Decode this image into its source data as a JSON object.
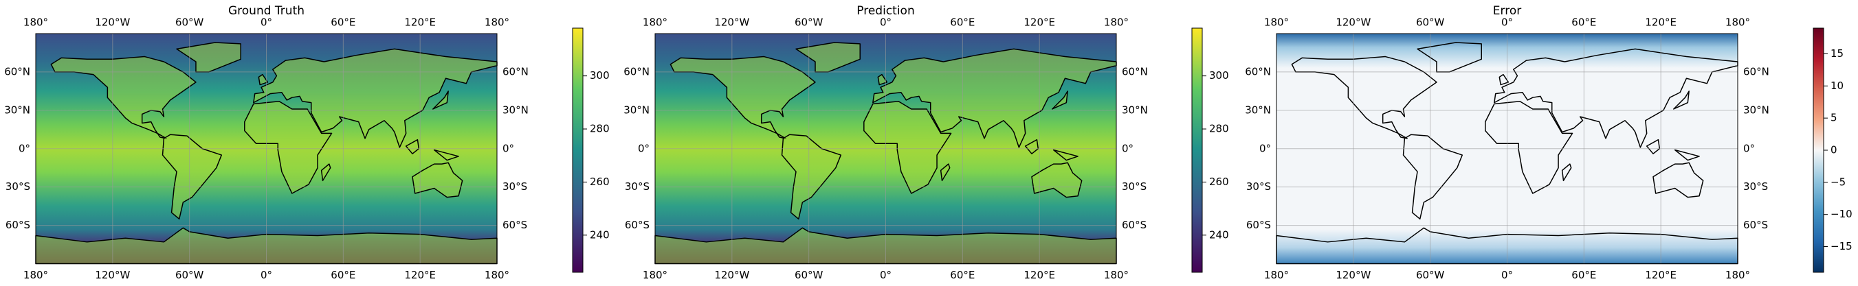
{
  "chart_data": [
    {
      "type": "map",
      "title": "Ground Truth",
      "cmap": "viridis",
      "xlim": [
        -180,
        180
      ],
      "ylim": [
        -90,
        90
      ],
      "xticks": [
        {
          "value": -180,
          "label": "180°"
        },
        {
          "value": -120,
          "label": "120°W"
        },
        {
          "value": -60,
          "label": "60°W"
        },
        {
          "value": 0,
          "label": "0°"
        },
        {
          "value": 60,
          "label": "60°E"
        },
        {
          "value": 120,
          "label": "120°E"
        },
        {
          "value": 180,
          "label": "180°"
        }
      ],
      "yticks": [
        {
          "value": 60,
          "label": "60°N"
        },
        {
          "value": 30,
          "label": "30°N"
        },
        {
          "value": 0,
          "label": "0°"
        },
        {
          "value": -30,
          "label": "30°S"
        },
        {
          "value": -60,
          "label": "60°S"
        }
      ],
      "grid": true,
      "colorbar": {
        "lim": [
          226,
          318
        ],
        "ticks": [
          240,
          260,
          280,
          300
        ]
      }
    },
    {
      "type": "map",
      "title": "Prediction",
      "cmap": "viridis",
      "xlim": [
        -180,
        180
      ],
      "ylim": [
        -90,
        90
      ],
      "xticks": [
        {
          "value": -180,
          "label": "180°"
        },
        {
          "value": -120,
          "label": "120°W"
        },
        {
          "value": -60,
          "label": "60°W"
        },
        {
          "value": 0,
          "label": "0°"
        },
        {
          "value": 60,
          "label": "60°E"
        },
        {
          "value": 120,
          "label": "120°E"
        },
        {
          "value": 180,
          "label": "180°"
        }
      ],
      "yticks": [
        {
          "value": 60,
          "label": "60°N"
        },
        {
          "value": 30,
          "label": "30°N"
        },
        {
          "value": 0,
          "label": "0°"
        },
        {
          "value": -30,
          "label": "30°S"
        },
        {
          "value": -60,
          "label": "60°S"
        }
      ],
      "grid": true,
      "colorbar": {
        "lim": [
          226,
          318
        ],
        "ticks": [
          240,
          260,
          280,
          300
        ]
      }
    },
    {
      "type": "map",
      "title": "Error",
      "cmap": "RdBu_r",
      "xlim": [
        -180,
        180
      ],
      "ylim": [
        -90,
        90
      ],
      "xticks": [
        {
          "value": -180,
          "label": "180°"
        },
        {
          "value": -120,
          "label": "120°W"
        },
        {
          "value": -60,
          "label": "60°W"
        },
        {
          "value": 0,
          "label": "0°"
        },
        {
          "value": 60,
          "label": "60°E"
        },
        {
          "value": 120,
          "label": "120°E"
        },
        {
          "value": 180,
          "label": "180°"
        }
      ],
      "yticks": [
        {
          "value": 60,
          "label": "60°N"
        },
        {
          "value": 30,
          "label": "30°N"
        },
        {
          "value": 0,
          "label": "0°"
        },
        {
          "value": -30,
          "label": "30°S"
        },
        {
          "value": -60,
          "label": "60°S"
        }
      ],
      "grid": true,
      "colorbar": {
        "lim": [
          -19,
          19
        ],
        "ticks": [
          {
            "value": -15,
            "label": "−15"
          },
          {
            "value": -10,
            "label": "−10"
          },
          {
            "value": -5,
            "label": "−5"
          },
          0,
          5,
          10,
          15
        ]
      }
    }
  ]
}
